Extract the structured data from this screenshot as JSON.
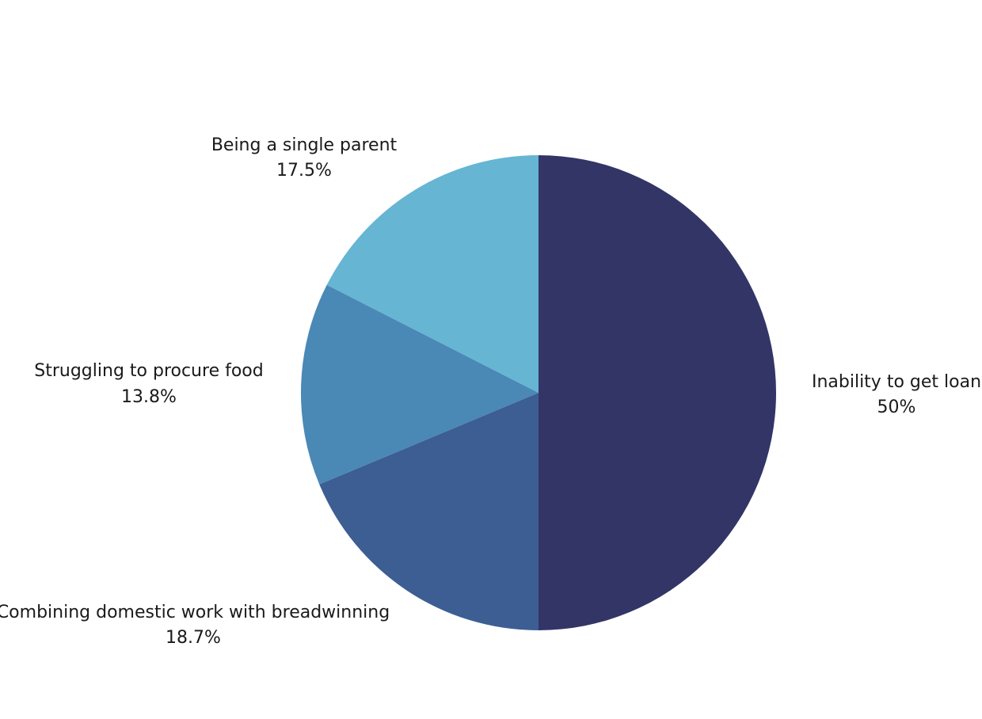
{
  "chart_data": {
    "type": "pie",
    "title": "",
    "start_angle_deg": 0,
    "direction": "clockwise",
    "slices": [
      {
        "label": "Inability to get loan",
        "value": 50,
        "value_label": "50%",
        "color": "#333567"
      },
      {
        "label": "Combining domestic work with breadwinning",
        "value": 18.7,
        "value_label": "18.7%",
        "color": "#3d5e93"
      },
      {
        "label": "Struggling to procure food",
        "value": 13.8,
        "value_label": "13.8%",
        "color": "#4a88b6"
      },
      {
        "label": "Being a single parent",
        "value": 17.5,
        "value_label": "17.5%",
        "color": "#65b5d3"
      }
    ]
  }
}
